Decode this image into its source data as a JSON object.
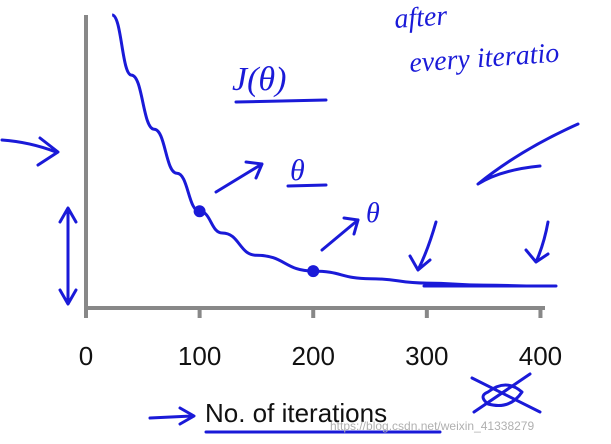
{
  "chart_data": {
    "type": "line",
    "x": [
      23,
      40,
      60,
      80,
      100,
      120,
      150,
      200,
      250,
      300,
      350,
      400
    ],
    "values": [
      1.0,
      0.795,
      0.61,
      0.46,
      0.33,
      0.256,
      0.18,
      0.126,
      0.1,
      0.085,
      0.078,
      0.075
    ],
    "color": "#1a1ad8",
    "xlim": [
      0,
      404
    ],
    "ylim": [
      0,
      1
    ],
    "xticks": [
      0,
      100,
      200,
      300,
      400
    ],
    "xlabel": "No. of iterations",
    "annotations": {
      "cost_label": "J(θ)",
      "theta_1": "θ",
      "theta_2": "θ",
      "note_line1": "after",
      "note_line2": "every iteratio"
    },
    "watermark": "https://blog.csdn.net/weixin_41338279"
  }
}
